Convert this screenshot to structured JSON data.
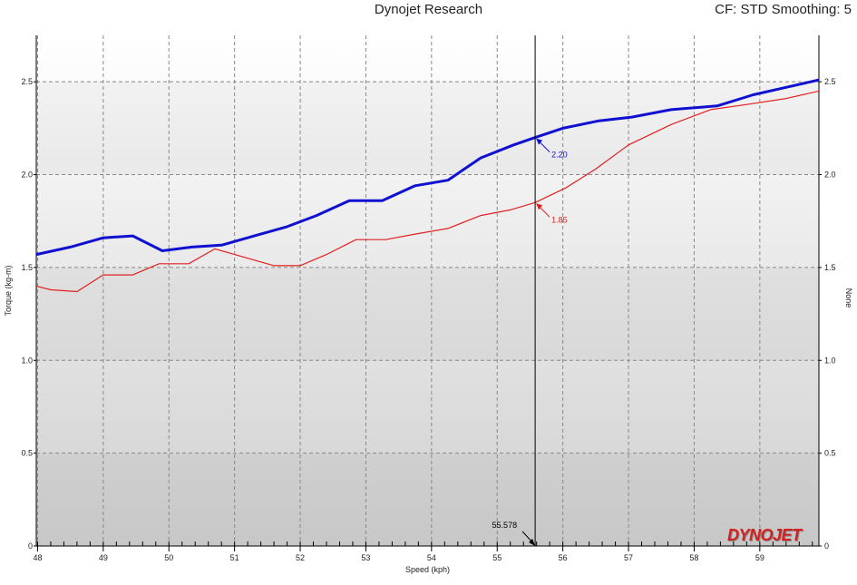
{
  "header": {
    "title": "Dynojet Research",
    "right_info": "CF: STD Smoothing: 5"
  },
  "logo_text": "DYNOJET",
  "chart_data": {
    "type": "line",
    "xlabel": "Speed (kph)",
    "ylabel": "Torque (kg-m)",
    "ylabel_right": "None",
    "xlim": [
      47.98,
      59.9
    ],
    "ylim": [
      0,
      2.75
    ],
    "x_ticks": [
      48,
      49,
      50,
      51,
      52,
      53,
      54,
      55,
      56,
      57,
      58,
      59
    ],
    "y_ticks": [
      0,
      0.5,
      1.0,
      1.5,
      2.0,
      2.5
    ],
    "y_tick_labels": [
      "0",
      "0.5",
      "1.0",
      "1.5",
      "2.0",
      "2.5"
    ],
    "grid": true,
    "series": [
      {
        "color": "#1010d0",
        "x": [
          47.98,
          48.5,
          49.0,
          49.45,
          49.9,
          50.35,
          50.8,
          51.3,
          51.8,
          52.25,
          52.75,
          53.25,
          53.75,
          54.25,
          54.75,
          55.25,
          55.58,
          56.0,
          56.55,
          57.05,
          57.65,
          58.35,
          58.9,
          59.4,
          59.9
        ],
        "y": [
          1.57,
          1.61,
          1.66,
          1.67,
          1.59,
          1.61,
          1.62,
          1.67,
          1.72,
          1.78,
          1.86,
          1.86,
          1.94,
          1.97,
          2.09,
          2.16,
          2.2,
          2.25,
          2.29,
          2.31,
          2.35,
          2.37,
          2.43,
          2.47,
          2.51
        ]
      },
      {
        "color": "#e02020",
        "x": [
          47.98,
          48.2,
          48.6,
          49.0,
          49.45,
          49.85,
          50.3,
          50.7,
          51.2,
          51.6,
          52.0,
          52.4,
          52.85,
          53.3,
          53.75,
          54.25,
          54.75,
          55.2,
          55.58,
          56.05,
          56.5,
          57.0,
          57.65,
          58.25,
          58.85,
          59.4,
          59.9
        ],
        "y": [
          1.4,
          1.38,
          1.37,
          1.46,
          1.46,
          1.52,
          1.52,
          1.6,
          1.55,
          1.51,
          1.51,
          1.57,
          1.65,
          1.65,
          1.68,
          1.71,
          1.78,
          1.81,
          1.85,
          1.93,
          2.03,
          2.16,
          2.27,
          2.35,
          2.38,
          2.41,
          2.45
        ]
      }
    ],
    "cursor": {
      "x": 55.578,
      "label": "55.578",
      "callouts": [
        {
          "series": 0,
          "value": 2.2,
          "label": "2.20"
        },
        {
          "series": 1,
          "value": 1.85,
          "label": "1.85"
        }
      ]
    }
  }
}
